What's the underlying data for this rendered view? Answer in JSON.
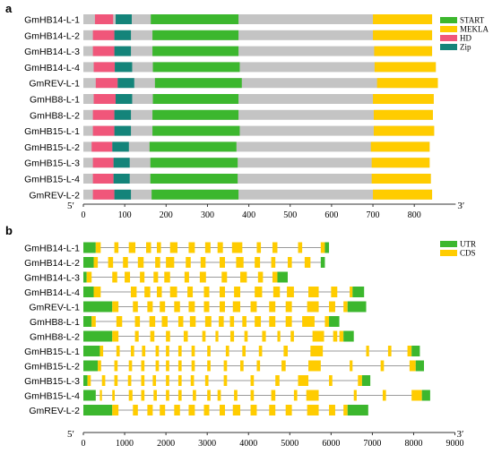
{
  "panel_a": {
    "letter": "a",
    "end_left": "5′",
    "end_right": "3′",
    "legend": [
      {
        "label": "START",
        "color": "#3cb72e"
      },
      {
        "label": "MEKLA",
        "color": "#ffcc00"
      },
      {
        "label": "HD",
        "color": "#f0567a"
      },
      {
        "label": "Zip",
        "color": "#14847a"
      }
    ],
    "ticks": [
      0,
      100,
      200,
      300,
      400,
      500,
      600,
      700,
      800
    ],
    "genes": [
      {
        "name": "GmHB14-L-1",
        "length": 843,
        "domains": [
          [
            16,
            25,
            "pad"
          ],
          [
            28,
            72,
            "HD"
          ],
          [
            78,
            117,
            "Zip"
          ],
          [
            163,
            375,
            "START"
          ],
          [
            700,
            843,
            "MEKLA"
          ]
        ]
      },
      {
        "name": "GmHB14-L-2",
        "length": 843,
        "domains": [
          [
            23,
            75,
            "HD"
          ],
          [
            75,
            115,
            "Zip"
          ],
          [
            167,
            375,
            "START"
          ],
          [
            700,
            843,
            "MEKLA"
          ]
        ]
      },
      {
        "name": "GmHB14-L-3",
        "length": 843,
        "domains": [
          [
            23,
            75,
            "HD"
          ],
          [
            75,
            115,
            "Zip"
          ],
          [
            167,
            375,
            "START"
          ],
          [
            703,
            843,
            "MEKLA"
          ]
        ]
      },
      {
        "name": "GmHB14-L-4",
        "length": 852,
        "domains": [
          [
            25,
            76,
            "HD"
          ],
          [
            76,
            118,
            "Zip"
          ],
          [
            168,
            378,
            "START"
          ],
          [
            704,
            852,
            "MEKLA"
          ]
        ]
      },
      {
        "name": "GmREV-L-1",
        "length": 857,
        "domains": [
          [
            30,
            83,
            "HD"
          ],
          [
            83,
            123,
            "Zip"
          ],
          [
            173,
            383,
            "START"
          ],
          [
            710,
            857,
            "MEKLA"
          ]
        ]
      },
      {
        "name": "GmHB8-L-1",
        "length": 847,
        "domains": [
          [
            25,
            78,
            "HD"
          ],
          [
            78,
            118,
            "Zip"
          ],
          [
            168,
            375,
            "START"
          ],
          [
            700,
            847,
            "MEKLA"
          ]
        ]
      },
      {
        "name": "GmHB8-L-2",
        "length": 845,
        "domains": [
          [
            23,
            75,
            "HD"
          ],
          [
            75,
            115,
            "Zip"
          ],
          [
            167,
            375,
            "START"
          ],
          [
            702,
            845,
            "MEKLA"
          ]
        ]
      },
      {
        "name": "GmHB15-L-1",
        "length": 848,
        "domains": [
          [
            23,
            75,
            "HD"
          ],
          [
            75,
            115,
            "Zip"
          ],
          [
            167,
            378,
            "START"
          ],
          [
            702,
            848,
            "MEKLA"
          ]
        ]
      },
      {
        "name": "GmHB15-L-2",
        "length": 837,
        "domains": [
          [
            20,
            70,
            "HD"
          ],
          [
            70,
            110,
            "Zip"
          ],
          [
            160,
            370,
            "START"
          ],
          [
            695,
            837,
            "MEKLA"
          ]
        ]
      },
      {
        "name": "GmHB15-L-3",
        "length": 837,
        "domains": [
          [
            23,
            73,
            "HD"
          ],
          [
            73,
            112,
            "Zip"
          ],
          [
            162,
            373,
            "START"
          ],
          [
            697,
            837,
            "MEKLA"
          ]
        ]
      },
      {
        "name": "GmHB15-L-4",
        "length": 840,
        "domains": [
          [
            23,
            73,
            "HD"
          ],
          [
            73,
            112,
            "Zip"
          ],
          [
            162,
            373,
            "START"
          ],
          [
            697,
            840,
            "MEKLA"
          ]
        ]
      },
      {
        "name": "GmREV-L-2",
        "length": 843,
        "domains": [
          [
            23,
            75,
            "HD"
          ],
          [
            75,
            115,
            "Zip"
          ],
          [
            165,
            375,
            "START"
          ],
          [
            700,
            843,
            "MEKLA"
          ]
        ]
      }
    ]
  },
  "panel_b": {
    "letter": "b",
    "end_left": "5′",
    "end_right": "3′",
    "legend": [
      {
        "label": "UTR",
        "color": "#3cb72e"
      },
      {
        "label": "CDS",
        "color": "#ffcc00"
      }
    ],
    "ticks": [
      0,
      1000,
      2000,
      3000,
      4000,
      5000,
      6000,
      7000,
      8000,
      9000
    ],
    "genes": [
      {
        "name": "GmHB14-L-1",
        "end": 5950,
        "utr5": [
          0,
          300
        ],
        "cds": [
          [
            300,
            420
          ],
          [
            750,
            850
          ],
          [
            1100,
            1260
          ],
          [
            1520,
            1640
          ],
          [
            1780,
            1880
          ],
          [
            2100,
            2280
          ],
          [
            2550,
            2700
          ],
          [
            2950,
            3080
          ],
          [
            3250,
            3380
          ],
          [
            3600,
            3850
          ],
          [
            4200,
            4300
          ],
          [
            4580,
            4700
          ],
          [
            5200,
            5300
          ],
          [
            5750,
            5850
          ]
        ],
        "utr3": [
          5850,
          5950
        ]
      },
      {
        "name": "GmHB14-L-2",
        "end": 5850,
        "utr5": [
          0,
          250
        ],
        "cds": [
          [
            250,
            350
          ],
          [
            600,
            720
          ],
          [
            960,
            1080
          ],
          [
            1320,
            1460
          ],
          [
            1740,
            1860
          ],
          [
            2000,
            2200
          ],
          [
            2480,
            2600
          ],
          [
            2840,
            2960
          ],
          [
            3300,
            3430
          ],
          [
            3700,
            3880
          ],
          [
            4150,
            4280
          ],
          [
            4550,
            4650
          ],
          [
            4950,
            5050
          ],
          [
            5360,
            5500
          ]
        ],
        "utr3": [
          5750,
          5850
        ]
      },
      {
        "name": "GmHB14-L-3",
        "end": 4950,
        "utr5": [
          0,
          80
        ],
        "cds": [
          [
            80,
            200
          ],
          [
            700,
            820
          ],
          [
            1000,
            1130
          ],
          [
            1370,
            1480
          ],
          [
            1700,
            1810
          ],
          [
            1960,
            2100
          ],
          [
            2450,
            2560
          ],
          [
            2820,
            2970
          ],
          [
            3350,
            3480
          ],
          [
            3800,
            3960
          ],
          [
            4230,
            4350
          ],
          [
            4580,
            4700
          ]
        ],
        "utr3": [
          4700,
          4950
        ]
      },
      {
        "name": "GmHB14-L-4",
        "end": 6800,
        "utr5": [
          0,
          250
        ],
        "cds": [
          [
            250,
            420
          ],
          [
            1150,
            1290
          ],
          [
            1480,
            1620
          ],
          [
            1780,
            1900
          ],
          [
            2100,
            2270
          ],
          [
            2520,
            2650
          ],
          [
            2920,
            3050
          ],
          [
            3300,
            3430
          ],
          [
            3650,
            3800
          ],
          [
            4150,
            4330
          ],
          [
            4600,
            4760
          ],
          [
            4930,
            5100
          ],
          [
            5450,
            5700
          ],
          [
            6000,
            6150
          ],
          [
            6450,
            6520
          ]
        ],
        "utr3": [
          6520,
          6800
        ]
      },
      {
        "name": "GmREV-L-1",
        "end": 6850,
        "utr5": [
          0,
          700
        ],
        "cds": [
          [
            700,
            850
          ],
          [
            1200,
            1320
          ],
          [
            1550,
            1680
          ],
          [
            1850,
            1980
          ],
          [
            2200,
            2340
          ],
          [
            2550,
            2700
          ],
          [
            2920,
            3050
          ],
          [
            3300,
            3430
          ],
          [
            3620,
            3800
          ],
          [
            4050,
            4200
          ],
          [
            4500,
            4650
          ],
          [
            4900,
            5050
          ],
          [
            5420,
            5700
          ],
          [
            5950,
            6100
          ],
          [
            6300,
            6400
          ]
        ],
        "utr3": [
          6400,
          6850
        ]
      },
      {
        "name": "GmHB8-L-1",
        "end": 6200,
        "utr5": [
          0,
          200
        ],
        "cds": [
          [
            200,
            300
          ],
          [
            800,
            940
          ],
          [
            1250,
            1370
          ],
          [
            1600,
            1740
          ],
          [
            1900,
            2040
          ],
          [
            2300,
            2420
          ],
          [
            2580,
            2720
          ],
          [
            2950,
            3100
          ],
          [
            3280,
            3400
          ],
          [
            3550,
            3650
          ],
          [
            3850,
            3950
          ],
          [
            4150,
            4300
          ],
          [
            4500,
            4650
          ],
          [
            4900,
            5050
          ],
          [
            5300,
            5600
          ],
          [
            5850,
            5950
          ]
        ],
        "utr3": [
          5950,
          6200
        ]
      },
      {
        "name": "GmHB8-L-2",
        "end": 6550,
        "utr5": [
          0,
          700
        ],
        "cds": [
          [
            700,
            850
          ],
          [
            1250,
            1340
          ],
          [
            1620,
            1720
          ],
          [
            2000,
            2100
          ],
          [
            2430,
            2530
          ],
          [
            2880,
            2960
          ],
          [
            3200,
            3270
          ],
          [
            3560,
            3650
          ],
          [
            3900,
            3980
          ],
          [
            4330,
            4420
          ],
          [
            4700,
            4770
          ],
          [
            5020,
            5100
          ],
          [
            5550,
            5830
          ],
          [
            6050,
            6150
          ],
          [
            6200,
            6300
          ]
        ],
        "utr3": [
          6300,
          6550
        ]
      },
      {
        "name": "GmHB15-L-1",
        "end": 8150,
        "utr5": [
          0,
          400
        ],
        "cds": [
          [
            400,
            480
          ],
          [
            800,
            880
          ],
          [
            1150,
            1230
          ],
          [
            1420,
            1500
          ],
          [
            1750,
            1830
          ],
          [
            2000,
            2080
          ],
          [
            2300,
            2380
          ],
          [
            2620,
            2700
          ],
          [
            3000,
            3080
          ],
          [
            3450,
            3530
          ],
          [
            3850,
            3930
          ],
          [
            4250,
            4330
          ],
          [
            4850,
            4950
          ],
          [
            5500,
            5800
          ],
          [
            6850,
            6920
          ],
          [
            7380,
            7460
          ],
          [
            7850,
            7950
          ]
        ],
        "utr3": [
          7950,
          8150
        ]
      },
      {
        "name": "GmHB15-L-2",
        "end": 8250,
        "utr5": [
          0,
          350
        ],
        "cds": [
          [
            350,
            430
          ],
          [
            750,
            830
          ],
          [
            1100,
            1180
          ],
          [
            1400,
            1480
          ],
          [
            1750,
            1830
          ],
          [
            2000,
            2080
          ],
          [
            2300,
            2380
          ],
          [
            2620,
            2700
          ],
          [
            3000,
            3080
          ],
          [
            3400,
            3480
          ],
          [
            3800,
            3880
          ],
          [
            4200,
            4280
          ],
          [
            4800,
            4900
          ],
          [
            5450,
            5750
          ],
          [
            6450,
            6520
          ],
          [
            7200,
            7280
          ],
          [
            7900,
            8050
          ]
        ],
        "utr3": [
          8050,
          8250
        ]
      },
      {
        "name": "GmHB15-L-3",
        "end": 6950,
        "utr5": [
          0,
          100
        ],
        "cds": [
          [
            100,
            180
          ],
          [
            450,
            530
          ],
          [
            750,
            830
          ],
          [
            1080,
            1160
          ],
          [
            1400,
            1480
          ],
          [
            1680,
            1760
          ],
          [
            2000,
            2080
          ],
          [
            2300,
            2380
          ],
          [
            2600,
            2680
          ],
          [
            2950,
            3030
          ],
          [
            3400,
            3480
          ],
          [
            4050,
            4130
          ],
          [
            4650,
            4750
          ],
          [
            5200,
            5450
          ],
          [
            5950,
            6030
          ],
          [
            6650,
            6750
          ]
        ],
        "utr3": [
          6750,
          6950
        ]
      },
      {
        "name": "GmHB15-L-4",
        "end": 8400,
        "utr5": [
          0,
          300
        ],
        "cds": [
          [
            400,
            450
          ],
          [
            700,
            760
          ],
          [
            1100,
            1190
          ],
          [
            1400,
            1480
          ],
          [
            1700,
            1780
          ],
          [
            2000,
            2080
          ],
          [
            2300,
            2380
          ],
          [
            2650,
            2730
          ],
          [
            3000,
            3080
          ],
          [
            3250,
            3330
          ],
          [
            3650,
            3730
          ],
          [
            4050,
            4130
          ],
          [
            4550,
            4650
          ],
          [
            5100,
            5180
          ],
          [
            5400,
            5700
          ],
          [
            6550,
            6620
          ],
          [
            7250,
            7330
          ],
          [
            7950,
            8200
          ]
        ],
        "utr3": [
          8200,
          8400
        ]
      },
      {
        "name": "GmREV-L-2",
        "end": 6900,
        "utr5": [
          0,
          700
        ],
        "cds": [
          [
            700,
            850
          ],
          [
            1200,
            1320
          ],
          [
            1550,
            1680
          ],
          [
            1850,
            1980
          ],
          [
            2200,
            2340
          ],
          [
            2550,
            2700
          ],
          [
            2920,
            3050
          ],
          [
            3300,
            3430
          ],
          [
            3620,
            3800
          ],
          [
            4050,
            4200
          ],
          [
            4500,
            4650
          ],
          [
            4900,
            5050
          ],
          [
            5420,
            5700
          ],
          [
            5950,
            6100
          ],
          [
            6300,
            6400
          ]
        ],
        "utr3": [
          6400,
          6900
        ]
      }
    ]
  }
}
